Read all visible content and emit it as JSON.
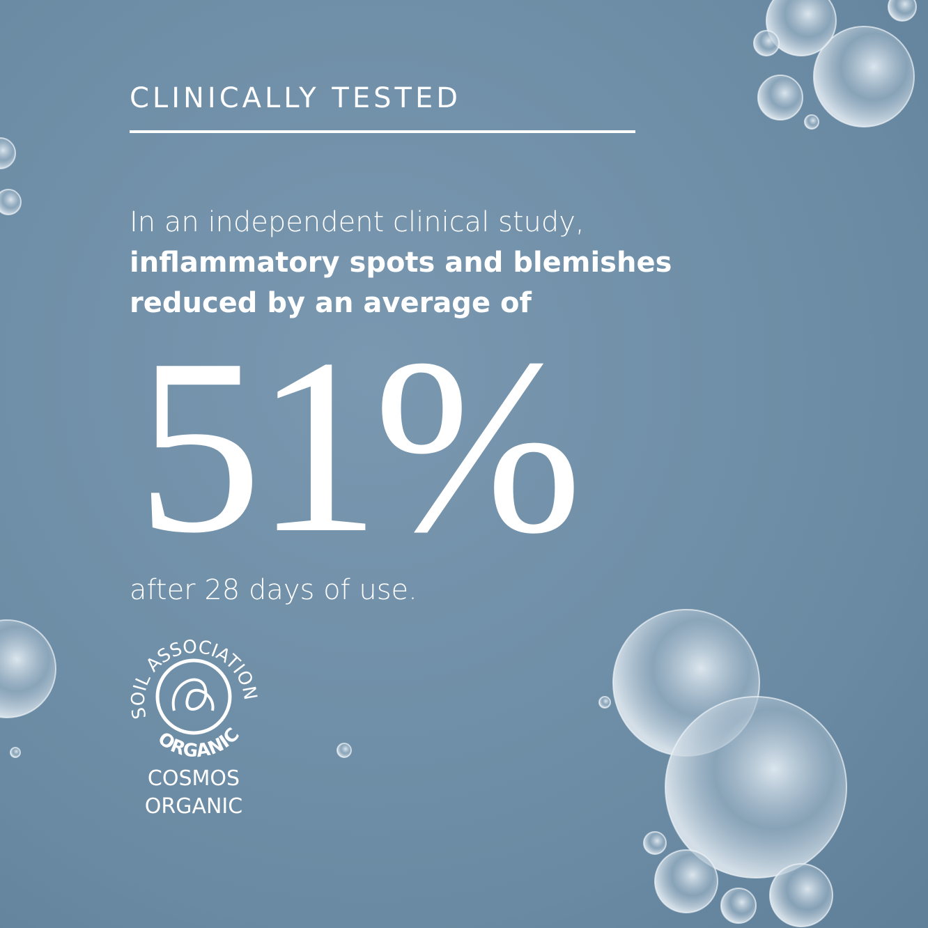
{
  "heading": "CLINICALLY TESTED",
  "intro": "In an independent clinical study,",
  "highlight": [
    "inflammatory spots and blemishes",
    "reduced by an average of"
  ],
  "stat": "51%",
  "footnote": "after 28 days of use.",
  "logo": {
    "ring": "SOIL ASSOCIATION",
    "arc": "ORGANIC",
    "caption": [
      "COSMOS",
      "ORGANIC"
    ]
  }
}
